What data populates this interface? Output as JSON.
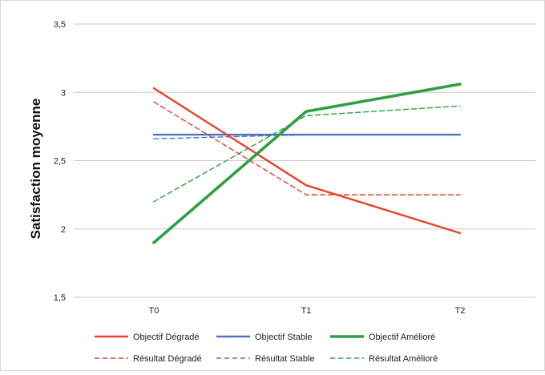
{
  "chart_data": {
    "type": "line",
    "title": "",
    "xlabel": "",
    "ylabel": "Satisfaction moyenne",
    "categories": [
      "T0",
      "T1",
      "T2"
    ],
    "ylim": [
      1.5,
      3.5
    ],
    "yticks": [
      {
        "value": 1.5,
        "label": "1,5"
      },
      {
        "value": 2,
        "label": "2"
      },
      {
        "value": 2.5,
        "label": "2,5"
      },
      {
        "value": 3,
        "label": "3"
      },
      {
        "value": 3.5,
        "label": "3,5"
      }
    ],
    "grid": "horizontal",
    "legend_position": "bottom",
    "series": [
      {
        "name": "Objectif Dégradé",
        "values": [
          3.03,
          2.32,
          1.97
        ],
        "color": "#e8432b",
        "dash": "solid",
        "width": "medium"
      },
      {
        "name": "Objectif Stable",
        "values": [
          2.69,
          2.69,
          2.69
        ],
        "color": "#4f73c4",
        "dash": "solid",
        "width": "medium"
      },
      {
        "name": "Objectif Amélioré",
        "values": [
          1.9,
          2.86,
          3.06
        ],
        "color": "#2ea043",
        "dash": "solid",
        "width": "thick"
      },
      {
        "name": "Résultat Dégradé",
        "values": [
          2.93,
          2.25,
          2.25
        ],
        "color": "#e8432b",
        "dash": "dashed",
        "width": "thin"
      },
      {
        "name": "Résultat Stable",
        "values": [
          2.66,
          2.69,
          2.69
        ],
        "color": "#4f73c4",
        "dash": "dashed",
        "width": "thin"
      },
      {
        "name": "Résultat Amélioré",
        "values": [
          2.2,
          2.83,
          2.9
        ],
        "color": "#2ea043",
        "dash": "dashed",
        "width": "thin"
      }
    ]
  }
}
